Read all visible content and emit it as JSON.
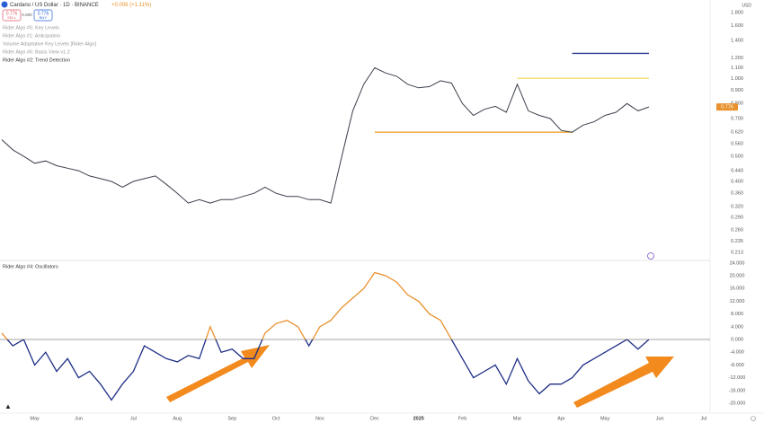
{
  "header": {
    "symbol": "Cardano / US Dollar · 1D · BINANCE",
    "change": "+0.008 (+1.11%)",
    "sell_price": "0.776",
    "sell_label": "SELL",
    "spread": "0.000",
    "buy_price": "0.776",
    "buy_label": "BUY",
    "currency": "USD"
  },
  "indicators": [
    "Rider Algo #5: Key Levels",
    "Rider Algo #1: Anticipation",
    "Volume Adaptative Key Levels [Rider Algo]",
    "Rider Algo #6: Basis View v1.2",
    "Rider Algo #2: Trend Detection"
  ],
  "chart_data": [
    {
      "type": "line",
      "log_scale": true,
      "grid": false,
      "categories": [
        null,
        null,
        null,
        "May",
        null,
        null,
        null,
        "Jun",
        null,
        null,
        null,
        null,
        "Jul",
        null,
        null,
        null,
        "Aug",
        null,
        null,
        null,
        null,
        "Sep",
        null,
        null,
        null,
        "Oct",
        null,
        null,
        null,
        "Nov",
        null,
        null,
        null,
        null,
        "Dec",
        null,
        null,
        null,
        "2025",
        null,
        null,
        null,
        "Feb",
        null,
        null,
        null,
        null,
        "Mar",
        null,
        null,
        null,
        "Apr",
        null,
        null,
        null,
        "May",
        null,
        null,
        null,
        null,
        "Jun",
        null,
        null,
        null,
        "Jul"
      ],
      "series": [
        {
          "color": "#3a3f4a",
          "values": [
            0.58,
            0.53,
            0.5,
            0.47,
            0.48,
            0.46,
            0.45,
            0.44,
            0.42,
            0.41,
            0.4,
            0.38,
            0.4,
            0.41,
            0.42,
            0.39,
            0.36,
            0.33,
            0.34,
            0.33,
            0.34,
            0.34,
            0.35,
            0.36,
            0.38,
            0.36,
            0.35,
            0.35,
            0.34,
            0.34,
            0.33,
            0.5,
            0.75,
            0.95,
            1.1,
            1.05,
            1.02,
            0.95,
            0.92,
            0.93,
            0.98,
            0.96,
            0.8,
            0.72,
            0.76,
            0.78,
            0.74,
            0.95,
            0.75,
            0.72,
            0.7,
            0.63,
            0.62,
            0.66,
            0.68,
            0.72,
            0.74,
            0.8,
            0.75,
            0.776,
            null,
            null,
            null,
            null,
            null
          ]
        }
      ],
      "levels": [
        {
          "value": 1.25,
          "color": "#2b3990",
          "start": 52,
          "end": 59
        },
        {
          "value": 1.0,
          "color": "#f2dc6a",
          "start": 47,
          "end": 59
        },
        {
          "value": 0.62,
          "color": "#f0a030",
          "start": 34,
          "end": 52
        }
      ],
      "ylim": [
        0.198,
        2.01
      ],
      "yticks": [
        {
          "value": 1.8,
          "label": "1.800"
        },
        {
          "value": 1.6,
          "label": "1.600"
        },
        {
          "value": 1.4,
          "label": "1.400"
        },
        {
          "value": 1.2,
          "label": "1.200"
        },
        {
          "value": 1.1,
          "label": "1.100"
        },
        {
          "value": 1.0,
          "label": "1.000"
        },
        {
          "value": 0.9,
          "label": "0.900"
        },
        {
          "value": 0.8,
          "label": "0.800"
        },
        {
          "value": 0.7,
          "label": "0.700"
        },
        {
          "value": 0.62,
          "label": "0.620"
        },
        {
          "value": 0.56,
          "label": "0.560"
        },
        {
          "value": 0.5,
          "label": "0.500"
        },
        {
          "value": 0.44,
          "label": "0.440"
        },
        {
          "value": 0.4,
          "label": "0.400"
        },
        {
          "value": 0.36,
          "label": "0.360"
        },
        {
          "value": 0.32,
          "label": "0.320"
        },
        {
          "value": 0.29,
          "label": "0.290"
        },
        {
          "value": 0.26,
          "label": "0.260"
        },
        {
          "value": 0.235,
          "label": "0.235"
        },
        {
          "value": 0.213,
          "label": "0.213"
        }
      ]
    },
    {
      "type": "line",
      "title": "Rider Algo #4: Oscillators",
      "grid": false,
      "zero_line": true,
      "series": [
        {
          "color": "#1f2f86",
          "above_color": "#e8912d",
          "values": [
            2,
            -2,
            0,
            -8,
            -4,
            -10,
            -6,
            -12,
            -10,
            -14,
            -19,
            -14,
            -10,
            -2,
            -4,
            -6,
            -7,
            -5,
            -6,
            4,
            -4,
            -3,
            -6,
            -6,
            2,
            5,
            6,
            4,
            -2,
            4,
            6,
            10,
            13,
            16,
            21,
            20,
            18,
            14,
            12,
            8,
            6,
            0,
            -6,
            -12,
            -10,
            -8,
            -14,
            -6,
            -13,
            -17,
            -14,
            -14,
            -12,
            -8,
            -6,
            -4,
            -2,
            0,
            -3,
            0,
            null,
            null,
            null,
            null,
            null
          ]
        }
      ],
      "ylim": [
        -23.1,
        24.8
      ],
      "yticks": [
        {
          "value": 24,
          "label": "24.000"
        },
        {
          "value": 20,
          "label": "20.000"
        },
        {
          "value": 16,
          "label": "16.000"
        },
        {
          "value": 12,
          "label": "12.000"
        },
        {
          "value": 8,
          "label": "8.000"
        },
        {
          "value": 4,
          "label": "4.000"
        },
        {
          "value": 0,
          "label": "0.000"
        },
        {
          "value": -4,
          "label": "-4.000"
        },
        {
          "value": -8,
          "label": "-8.000"
        },
        {
          "value": -12,
          "label": "-12.000"
        },
        {
          "value": -16,
          "label": "-16.000"
        },
        {
          "value": -20,
          "label": "-20.000"
        }
      ]
    }
  ]
}
